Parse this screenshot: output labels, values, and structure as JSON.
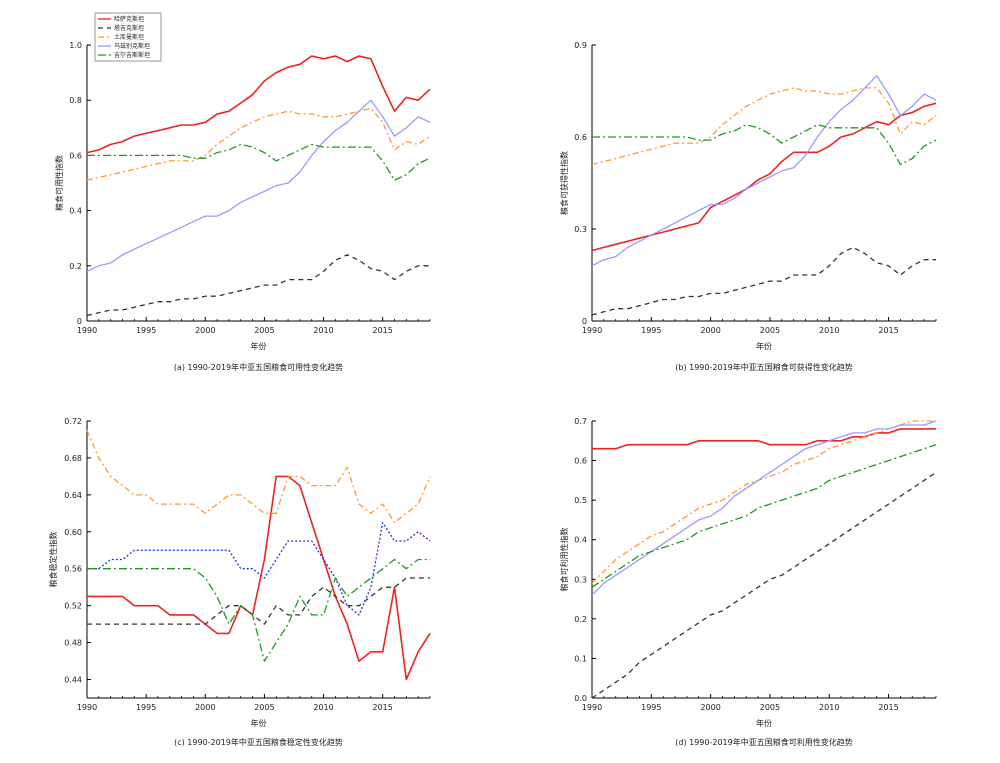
{
  "legend": [
    {
      "name": "哈萨克斯坦",
      "color": "#ee2222",
      "dash": ""
    },
    {
      "name": "塔吉克斯坦",
      "color": "#333333",
      "dash": "5,4"
    },
    {
      "name": "土库曼斯坦",
      "color": "#ff9933",
      "dash": "6,3,2,3"
    },
    {
      "name": "乌兹别克斯坦",
      "color": "#9999ff",
      "dash": ""
    },
    {
      "name": "吉尔吉斯斯坦",
      "color": "#229922",
      "dash": "8,3,2,3"
    }
  ],
  "chart_data": [
    {
      "type": "line",
      "caption": "(a) 1990-2019年中亚五国粮食可用性变化趋势",
      "xlabel": "年份",
      "ylabel": "粮食可用性指数",
      "xlim": [
        1990,
        2019
      ],
      "ylim": [
        0,
        1.0
      ],
      "xticks": [
        1990,
        1995,
        2000,
        2005,
        2010,
        2015
      ],
      "yticks": [
        "0",
        "0.2",
        "0.4",
        "0.6",
        "0.8",
        "1.0"
      ],
      "ytick_values": [
        0,
        0.2,
        0.4,
        0.6,
        0.8,
        1.0
      ],
      "has_legend": true,
      "legend_position": "top-left",
      "x": [
        1990,
        1991,
        1992,
        1993,
        1994,
        1995,
        1996,
        1997,
        1998,
        1999,
        2000,
        2001,
        2002,
        2003,
        2004,
        2005,
        2006,
        2007,
        2008,
        2009,
        2010,
        2011,
        2012,
        2013,
        2014,
        2015,
        2016,
        2017,
        2018,
        2019
      ],
      "series": [
        {
          "name": "哈萨克斯坦",
          "values": [
            0.61,
            0.62,
            0.64,
            0.65,
            0.67,
            0.68,
            0.69,
            0.7,
            0.71,
            0.71,
            0.72,
            0.75,
            0.76,
            0.79,
            0.82,
            0.87,
            0.9,
            0.92,
            0.93,
            0.96,
            0.95,
            0.96,
            0.94,
            0.96,
            0.95,
            0.85,
            0.76,
            0.81,
            0.8,
            0.84
          ]
        },
        {
          "name": "塔吉克斯坦",
          "values": [
            0.02,
            0.03,
            0.04,
            0.04,
            0.05,
            0.06,
            0.07,
            0.07,
            0.08,
            0.08,
            0.09,
            0.09,
            0.1,
            0.11,
            0.12,
            0.13,
            0.13,
            0.15,
            0.15,
            0.15,
            0.18,
            0.22,
            0.24,
            0.22,
            0.19,
            0.18,
            0.15,
            0.18,
            0.2,
            0.2
          ]
        },
        {
          "name": "土库曼斯坦",
          "values": [
            0.51,
            0.52,
            0.53,
            0.54,
            0.55,
            0.56,
            0.57,
            0.58,
            0.58,
            0.58,
            0.6,
            0.64,
            0.67,
            0.7,
            0.72,
            0.74,
            0.75,
            0.76,
            0.75,
            0.75,
            0.74,
            0.74,
            0.75,
            0.76,
            0.77,
            0.72,
            0.62,
            0.65,
            0.64,
            0.67
          ]
        },
        {
          "name": "乌兹别克斯坦",
          "values": [
            0.18,
            0.2,
            0.21,
            0.24,
            0.26,
            0.28,
            0.3,
            0.32,
            0.34,
            0.36,
            0.38,
            0.38,
            0.4,
            0.43,
            0.45,
            0.47,
            0.49,
            0.5,
            0.54,
            0.6,
            0.65,
            0.69,
            0.72,
            0.76,
            0.8,
            0.74,
            0.67,
            0.7,
            0.74,
            0.72
          ]
        },
        {
          "name": "吉尔吉斯斯坦",
          "values": [
            0.6,
            0.6,
            0.6,
            0.6,
            0.6,
            0.6,
            0.6,
            0.6,
            0.6,
            0.59,
            0.59,
            0.61,
            0.62,
            0.64,
            0.63,
            0.61,
            0.58,
            0.6,
            0.62,
            0.64,
            0.63,
            0.63,
            0.63,
            0.63,
            0.63,
            0.58,
            0.51,
            0.53,
            0.57,
            0.59
          ]
        }
      ]
    },
    {
      "type": "line",
      "caption": "(b) 1990-2019年中亚五国粮食可获得性变化趋势",
      "xlabel": "年份",
      "ylabel": "粮食可获得性指数",
      "xlim": [
        1990,
        2019
      ],
      "ylim": [
        0,
        0.9
      ],
      "xticks": [
        1990,
        1995,
        2000,
        2005,
        2010,
        2015
      ],
      "yticks": [
        "0",
        "0.3",
        "0.6",
        "0.9"
      ],
      "ytick_values": [
        0,
        0.3,
        0.6,
        0.9
      ],
      "has_legend": false,
      "x": [
        1990,
        1991,
        1992,
        1993,
        1994,
        1995,
        1996,
        1997,
        1998,
        1999,
        2000,
        2001,
        2002,
        2003,
        2004,
        2005,
        2006,
        2007,
        2008,
        2009,
        2010,
        2011,
        2012,
        2013,
        2014,
        2015,
        2016,
        2017,
        2018,
        2019
      ],
      "series": [
        {
          "name": "哈萨克斯坦",
          "values": [
            0.23,
            0.24,
            0.25,
            0.26,
            0.27,
            0.28,
            0.29,
            0.3,
            0.31,
            0.32,
            0.37,
            0.39,
            0.41,
            0.43,
            0.46,
            0.48,
            0.52,
            0.55,
            0.55,
            0.55,
            0.57,
            0.6,
            0.61,
            0.63,
            0.65,
            0.64,
            0.67,
            0.68,
            0.7,
            0.71
          ]
        },
        {
          "name": "塔吉克斯坦",
          "values": [
            0.02,
            0.03,
            0.04,
            0.04,
            0.05,
            0.06,
            0.07,
            0.07,
            0.08,
            0.08,
            0.09,
            0.09,
            0.1,
            0.11,
            0.12,
            0.13,
            0.13,
            0.15,
            0.15,
            0.15,
            0.18,
            0.22,
            0.24,
            0.22,
            0.19,
            0.18,
            0.15,
            0.18,
            0.2,
            0.2
          ]
        },
        {
          "name": "土库曼斯坦",
          "values": [
            0.51,
            0.52,
            0.53,
            0.54,
            0.55,
            0.56,
            0.57,
            0.58,
            0.58,
            0.58,
            0.6,
            0.64,
            0.67,
            0.7,
            0.72,
            0.74,
            0.75,
            0.76,
            0.75,
            0.75,
            0.74,
            0.74,
            0.75,
            0.76,
            0.76,
            0.71,
            0.61,
            0.65,
            0.64,
            0.67
          ]
        },
        {
          "name": "乌兹别克斯坦",
          "values": [
            0.18,
            0.2,
            0.21,
            0.24,
            0.26,
            0.28,
            0.3,
            0.32,
            0.34,
            0.36,
            0.38,
            0.38,
            0.4,
            0.43,
            0.45,
            0.47,
            0.49,
            0.5,
            0.54,
            0.6,
            0.65,
            0.69,
            0.72,
            0.76,
            0.8,
            0.74,
            0.67,
            0.7,
            0.74,
            0.72
          ]
        },
        {
          "name": "吉尔吉斯斯坦",
          "values": [
            0.6,
            0.6,
            0.6,
            0.6,
            0.6,
            0.6,
            0.6,
            0.6,
            0.6,
            0.59,
            0.59,
            0.61,
            0.62,
            0.64,
            0.63,
            0.61,
            0.58,
            0.6,
            0.62,
            0.64,
            0.63,
            0.63,
            0.63,
            0.63,
            0.63,
            0.58,
            0.51,
            0.53,
            0.57,
            0.59
          ]
        }
      ]
    },
    {
      "type": "line",
      "caption": "(c) 1990-2019年中亚五国粮食稳定性变化趋势",
      "xlabel": "年份",
      "ylabel": "粮食稳定性指数",
      "xlim": [
        1990,
        2019
      ],
      "ylim": [
        0.42,
        0.72
      ],
      "xticks": [
        1990,
        1995,
        2000,
        2005,
        2010,
        2015
      ],
      "yticks": [
        "0.44",
        "0.48",
        "0.52",
        "0.56",
        "0.60",
        "0.64",
        "0.68",
        "0.72"
      ],
      "ytick_values": [
        0.44,
        0.48,
        0.52,
        0.56,
        0.6,
        0.64,
        0.68,
        0.72
      ],
      "has_legend": false,
      "x": [
        1990,
        1991,
        1992,
        1993,
        1994,
        1995,
        1996,
        1997,
        1998,
        1999,
        2000,
        2001,
        2002,
        2003,
        2004,
        2005,
        2006,
        2007,
        2008,
        2009,
        2010,
        2011,
        2012,
        2013,
        2014,
        2015,
        2016,
        2017,
        2018,
        2019
      ],
      "series": [
        {
          "name": "哈萨克斯坦",
          "values": [
            0.53,
            0.53,
            0.53,
            0.53,
            0.52,
            0.52,
            0.52,
            0.51,
            0.51,
            0.51,
            0.5,
            0.49,
            0.49,
            0.52,
            0.51,
            0.57,
            0.66,
            0.66,
            0.65,
            0.61,
            0.57,
            0.53,
            0.5,
            0.46,
            0.47,
            0.47,
            0.54,
            0.44,
            0.47,
            0.49
          ]
        },
        {
          "name": "塔吉克斯坦",
          "values": [
            0.5,
            0.5,
            0.5,
            0.5,
            0.5,
            0.5,
            0.5,
            0.5,
            0.5,
            0.5,
            0.5,
            0.51,
            0.52,
            0.52,
            0.51,
            0.5,
            0.52,
            0.51,
            0.51,
            0.53,
            0.54,
            0.53,
            0.52,
            0.52,
            0.53,
            0.54,
            0.54,
            0.55,
            0.55,
            0.55
          ]
        },
        {
          "name": "土库曼斯坦",
          "values": [
            0.71,
            0.68,
            0.66,
            0.65,
            0.64,
            0.64,
            0.63,
            0.63,
            0.63,
            0.63,
            0.62,
            0.63,
            0.64,
            0.64,
            0.63,
            0.62,
            0.62,
            0.66,
            0.66,
            0.65,
            0.65,
            0.65,
            0.67,
            0.63,
            0.62,
            0.63,
            0.61,
            0.62,
            0.63,
            0.66
          ]
        },
        {
          "name": "乌兹别克斯坦",
          "values": [
            0.56,
            0.56,
            0.57,
            0.57,
            0.58,
            0.58,
            0.58,
            0.58,
            0.58,
            0.58,
            0.58,
            0.58,
            0.58,
            0.56,
            0.56,
            0.55,
            0.57,
            0.59,
            0.59,
            0.59,
            0.57,
            0.55,
            0.52,
            0.51,
            0.54,
            0.61,
            0.59,
            0.59,
            0.6,
            0.59
          ]
        },
        {
          "name": "吉尔吉斯斯坦",
          "values": [
            0.56,
            0.56,
            0.56,
            0.56,
            0.56,
            0.56,
            0.56,
            0.56,
            0.56,
            0.56,
            0.55,
            0.53,
            0.5,
            0.52,
            0.51,
            0.46,
            0.48,
            0.5,
            0.53,
            0.51,
            0.51,
            0.55,
            0.53,
            0.54,
            0.55,
            0.56,
            0.57,
            0.56,
            0.57,
            0.57
          ]
        }
      ]
    },
    {
      "type": "line",
      "caption": "(d) 1990-2019年中亚五国粮食可利用性变化趋势",
      "xlabel": "年份",
      "ylabel": "粮食可利用性指数",
      "xlim": [
        1990,
        2019
      ],
      "ylim": [
        0,
        0.7
      ],
      "xticks": [
        1990,
        1995,
        2000,
        2005,
        2010,
        2015
      ],
      "yticks": [
        "0.0",
        "0.1",
        "0.2",
        "0.3",
        "0.4",
        "0.5",
        "0.6",
        "0.7"
      ],
      "ytick_values": [
        0,
        0.1,
        0.2,
        0.3,
        0.4,
        0.5,
        0.6,
        0.7
      ],
      "has_legend": false,
      "x": [
        1990,
        1991,
        1992,
        1993,
        1994,
        1995,
        1996,
        1997,
        1998,
        1999,
        2000,
        2001,
        2002,
        2003,
        2004,
        2005,
        2006,
        2007,
        2008,
        2009,
        2010,
        2011,
        2012,
        2013,
        2014,
        2015,
        2016,
        2017,
        2018,
        2019
      ],
      "series": [
        {
          "name": "哈萨克斯坦",
          "values": [
            0.63,
            0.63,
            0.63,
            0.64,
            0.64,
            0.64,
            0.64,
            0.64,
            0.64,
            0.65,
            0.65,
            0.65,
            0.65,
            0.65,
            0.65,
            0.64,
            0.64,
            0.64,
            0.64,
            0.65,
            0.65,
            0.65,
            0.66,
            0.66,
            0.67,
            0.67,
            0.68,
            0.68,
            0.68,
            0.68
          ]
        },
        {
          "name": "塔吉克斯坦",
          "values": [
            0.0,
            0.02,
            0.04,
            0.06,
            0.09,
            0.11,
            0.13,
            0.15,
            0.17,
            0.19,
            0.21,
            0.22,
            0.24,
            0.26,
            0.28,
            0.3,
            0.31,
            0.33,
            0.35,
            0.37,
            0.39,
            0.41,
            0.43,
            0.45,
            0.47,
            0.49,
            0.51,
            0.53,
            0.55,
            0.57
          ]
        },
        {
          "name": "土库曼斯坦",
          "values": [
            0.29,
            0.32,
            0.35,
            0.37,
            0.39,
            0.41,
            0.42,
            0.44,
            0.46,
            0.48,
            0.49,
            0.5,
            0.52,
            0.54,
            0.55,
            0.56,
            0.57,
            0.59,
            0.6,
            0.61,
            0.63,
            0.64,
            0.65,
            0.66,
            0.67,
            0.68,
            0.69,
            0.7,
            0.7,
            0.7
          ]
        },
        {
          "name": "乌兹别克斯坦",
          "values": [
            0.26,
            0.29,
            0.31,
            0.33,
            0.35,
            0.37,
            0.39,
            0.41,
            0.43,
            0.45,
            0.46,
            0.48,
            0.51,
            0.53,
            0.55,
            0.57,
            0.59,
            0.61,
            0.63,
            0.64,
            0.65,
            0.66,
            0.67,
            0.67,
            0.68,
            0.68,
            0.69,
            0.69,
            0.69,
            0.7
          ]
        },
        {
          "name": "吉尔吉斯斯坦",
          "values": [
            0.28,
            0.3,
            0.32,
            0.34,
            0.36,
            0.37,
            0.38,
            0.39,
            0.4,
            0.42,
            0.43,
            0.44,
            0.45,
            0.46,
            0.48,
            0.49,
            0.5,
            0.51,
            0.52,
            0.53,
            0.55,
            0.56,
            0.57,
            0.58,
            0.59,
            0.6,
            0.61,
            0.62,
            0.63,
            0.64
          ]
        }
      ]
    }
  ]
}
